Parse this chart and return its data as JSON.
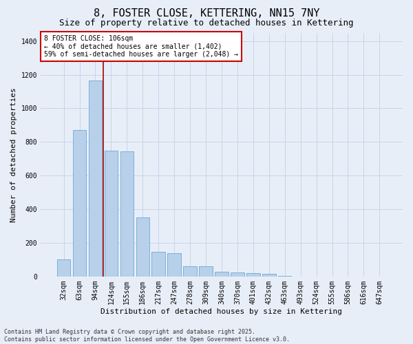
{
  "title_line1": "8, FOSTER CLOSE, KETTERING, NN15 7NY",
  "title_line2": "Size of property relative to detached houses in Kettering",
  "xlabel": "Distribution of detached houses by size in Kettering",
  "ylabel": "Number of detached properties",
  "categories": [
    "32sqm",
    "63sqm",
    "94sqm",
    "124sqm",
    "155sqm",
    "186sqm",
    "217sqm",
    "247sqm",
    "278sqm",
    "309sqm",
    "340sqm",
    "370sqm",
    "401sqm",
    "432sqm",
    "463sqm",
    "493sqm",
    "524sqm",
    "555sqm",
    "586sqm",
    "616sqm",
    "647sqm"
  ],
  "values": [
    100,
    870,
    1165,
    750,
    745,
    350,
    145,
    140,
    60,
    60,
    30,
    25,
    20,
    15,
    5,
    0,
    0,
    0,
    0,
    0,
    0
  ],
  "bar_color": "#b8d0ea",
  "bar_edge_color": "#6aaad4",
  "grid_color": "#c8d4e8",
  "background_color": "#e8eef8",
  "vline_color": "#aa0000",
  "annotation_text": "8 FOSTER CLOSE: 106sqm\n← 40% of detached houses are smaller (1,402)\n59% of semi-detached houses are larger (2,048) →",
  "annotation_box_color": "#cc0000",
  "annotation_bg": "#ffffff",
  "ylim": [
    0,
    1450
  ],
  "yticks": [
    0,
    200,
    400,
    600,
    800,
    1000,
    1200,
    1400
  ],
  "footer_line1": "Contains HM Land Registry data © Crown copyright and database right 2025.",
  "footer_line2": "Contains public sector information licensed under the Open Government Licence v3.0.",
  "title_fontsize": 11,
  "subtitle_fontsize": 9,
  "axis_label_fontsize": 8,
  "tick_fontsize": 7,
  "annotation_fontsize": 7,
  "footer_fontsize": 6
}
